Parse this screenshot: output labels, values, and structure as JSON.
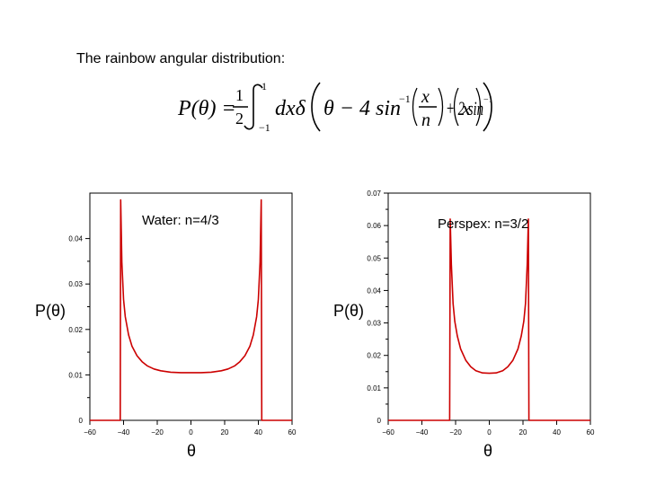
{
  "heading": "The rainbow angular distribution:",
  "formula": {
    "lhs": "P(θ) =",
    "half_num": "1",
    "half_den": "2",
    "int_upper": "1",
    "int_lower": "−1",
    "integrand": "dxδ",
    "arg1": "θ − 4 sin",
    "inv": "−1",
    "frac_num": "x",
    "frac_den": "n",
    "arg2": "+ 2 sin",
    "arg3": "x"
  },
  "chart_data": [
    {
      "type": "line",
      "annotation": "Water:  n=4/3",
      "xlabel": "θ",
      "ylabel": "P(θ)",
      "xlim": [
        -60,
        60
      ],
      "ylim": [
        0,
        0.05
      ],
      "xticks": [
        -60,
        -40,
        -20,
        0,
        20,
        40,
        60
      ],
      "xtick_labels": [
        "−60",
        "−40",
        "−20",
        "0",
        "20",
        "40",
        "60"
      ],
      "yticks": [
        0.01,
        0.02,
        0.03,
        0.04
      ],
      "ytick_labels": [
        "0.01",
        "0.02",
        "0.03",
        "0.04"
      ],
      "edges": [
        -42,
        42
      ],
      "color": "#cc0000",
      "x": [
        -60,
        -43,
        -42,
        -41.7,
        -41,
        -40,
        -39,
        -37,
        -35,
        -32,
        -29,
        -26,
        -22,
        -18,
        -12,
        -6,
        0,
        6,
        12,
        18,
        22,
        26,
        29,
        32,
        35,
        37,
        39,
        40,
        41,
        41.7,
        42,
        43,
        60
      ],
      "y": [
        0,
        0,
        0,
        0.0485,
        0.0348,
        0.0266,
        0.0228,
        0.0188,
        0.0163,
        0.0142,
        0.0129,
        0.012,
        0.0113,
        0.0109,
        0.0106,
        0.0105,
        0.0105,
        0.0105,
        0.0106,
        0.0109,
        0.0113,
        0.012,
        0.0129,
        0.0142,
        0.0163,
        0.0188,
        0.0228,
        0.0266,
        0.0348,
        0.0485,
        0,
        0,
        0
      ]
    },
    {
      "type": "line",
      "annotation": "Perspex:  n=3/2",
      "xlabel": "θ",
      "ylabel": "P(θ)",
      "xlim": [
        -60,
        60
      ],
      "ylim": [
        0,
        0.07
      ],
      "xticks": [
        -60,
        -40,
        -20,
        0,
        20,
        40,
        60
      ],
      "xtick_labels": [
        "−60",
        "−40",
        "−20",
        "0",
        "20",
        "40",
        "60"
      ],
      "yticks": [
        0.01,
        0.02,
        0.03,
        0.04,
        0.05,
        0.06,
        0.07
      ],
      "ytick_labels": [
        "0.01",
        "0.02",
        "0.03",
        "0.04",
        "0.05",
        "0.06",
        "0.07"
      ],
      "edges": [
        -23.5,
        23.5
      ],
      "color": "#cc0000",
      "x": [
        -60,
        -24.5,
        -23.5,
        -23.2,
        -22.5,
        -21.5,
        -20.5,
        -19,
        -17,
        -14,
        -11,
        -8,
        -4,
        0,
        4,
        8,
        11,
        14,
        17,
        19,
        20.5,
        21.5,
        22.5,
        23.2,
        23.5,
        24.5,
        60
      ],
      "y": [
        0,
        0,
        0,
        0.062,
        0.048,
        0.036,
        0.0305,
        0.026,
        0.022,
        0.0185,
        0.0165,
        0.0153,
        0.0146,
        0.0145,
        0.0146,
        0.0153,
        0.0165,
        0.0185,
        0.022,
        0.026,
        0.0305,
        0.036,
        0.048,
        0.062,
        0,
        0,
        0
      ]
    }
  ]
}
